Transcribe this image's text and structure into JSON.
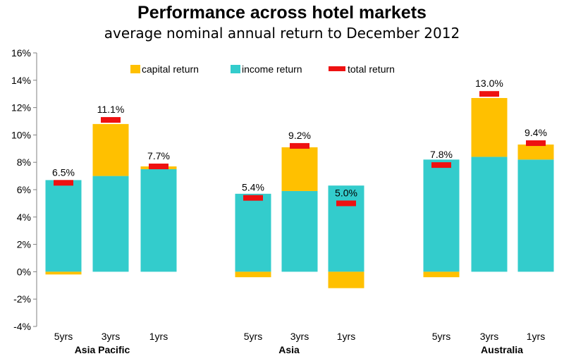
{
  "colors": {
    "capital": "#FFC000",
    "income": "#33CCCC",
    "total": "#EE1111",
    "axis": "#808080"
  },
  "chart_data": {
    "type": "bar",
    "title": "Performance across hotel markets",
    "subtitle": "average nominal annual return to December 2012",
    "ylim": [
      -4,
      16
    ],
    "yticks": [
      -4,
      -2,
      0,
      2,
      4,
      6,
      8,
      10,
      12,
      14,
      16
    ],
    "ytick_labels": [
      "-4%",
      "-2%",
      "0%",
      "2%",
      "4%",
      "6%",
      "8%",
      "10%",
      "12%",
      "14%",
      "16%"
    ],
    "legend": [
      {
        "key": "capital",
        "label": "capital return"
      },
      {
        "key": "income",
        "label": "income return"
      },
      {
        "key": "total",
        "label": "total return"
      }
    ],
    "legend_position": "top",
    "grid": false,
    "groups": [
      {
        "name": "Asia Pacific",
        "bars": [
          {
            "label": "5yrs",
            "income": 6.7,
            "capital": -0.2,
            "total": 6.5,
            "total_label": "6.5%"
          },
          {
            "label": "3yrs",
            "income": 7.0,
            "capital": 3.8,
            "total": 11.1,
            "total_label": "11.1%"
          },
          {
            "label": "1yrs",
            "income": 7.5,
            "capital": 0.2,
            "total": 7.7,
            "total_label": "7.7%"
          }
        ]
      },
      {
        "name": "Asia",
        "bars": [
          {
            "label": "5yrs",
            "income": 5.7,
            "capital": -0.4,
            "total": 5.4,
            "total_label": "5.4%"
          },
          {
            "label": "3yrs",
            "income": 5.9,
            "capital": 3.2,
            "total": 9.2,
            "total_label": "9.2%"
          },
          {
            "label": "1yrs",
            "income": 6.3,
            "capital": -1.2,
            "total": 5.0,
            "total_label": "5.0%"
          }
        ]
      },
      {
        "name": "Australia",
        "bars": [
          {
            "label": "5yrs",
            "income": 8.2,
            "capital": -0.4,
            "total": 7.8,
            "total_label": "7.8%"
          },
          {
            "label": "3yrs",
            "income": 8.4,
            "capital": 4.3,
            "total": 13.0,
            "total_label": "13.0%"
          },
          {
            "label": "1yrs",
            "income": 8.2,
            "capital": 1.1,
            "total": 9.4,
            "total_label": "9.4%"
          }
        ]
      }
    ]
  }
}
